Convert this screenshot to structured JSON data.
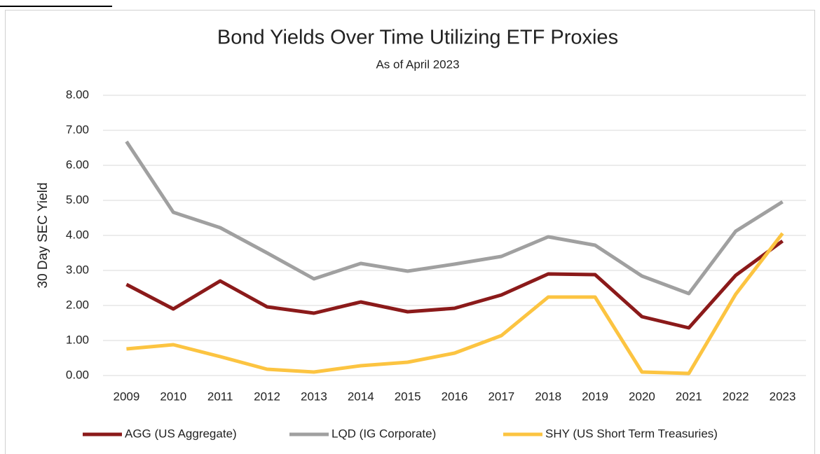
{
  "chart_data": {
    "type": "line",
    "title": "Bond Yields Over Time Utilizing ETF Proxies",
    "subtitle": "As of April 2023",
    "y_label": "30 Day SEC Yield",
    "categories": [
      "2009",
      "2010",
      "2011",
      "2012",
      "2013",
      "2014",
      "2015",
      "2016",
      "2017",
      "2018",
      "2019",
      "2020",
      "2021",
      "2022",
      "2023"
    ],
    "series": [
      {
        "name": "AGG (US Aggregate)",
        "color": "#8b1a1a",
        "values": [
          2.6,
          1.9,
          2.7,
          1.96,
          1.78,
          2.1,
          1.82,
          1.92,
          2.3,
          2.9,
          2.88,
          1.68,
          1.36,
          2.86,
          3.84
        ]
      },
      {
        "name": "LQD (IG Corporate)",
        "color": "#a0a0a0",
        "values": [
          6.68,
          4.66,
          4.22,
          3.5,
          2.76,
          3.2,
          2.98,
          3.18,
          3.4,
          3.96,
          3.72,
          2.84,
          2.34,
          4.12,
          4.96
        ]
      },
      {
        "name": "SHY (US Short Term Treasuries)",
        "color": "#fcc441",
        "values": [
          0.76,
          0.88,
          0.54,
          0.18,
          0.1,
          0.28,
          0.38,
          0.64,
          1.14,
          2.24,
          2.24,
          0.1,
          0.06,
          2.32,
          4.06
        ]
      }
    ],
    "ylim": [
      0,
      8
    ],
    "yticks": [
      {
        "value": 0,
        "label": "0.00"
      },
      {
        "value": 1,
        "label": "1.00"
      },
      {
        "value": 2,
        "label": "2.00"
      },
      {
        "value": 3,
        "label": "3.00"
      },
      {
        "value": 4,
        "label": "4.00"
      },
      {
        "value": 5,
        "label": "5.00"
      },
      {
        "value": 6,
        "label": "6.00"
      },
      {
        "value": 7,
        "label": "7.00"
      },
      {
        "value": 8,
        "label": "8.00"
      }
    ],
    "grid": true,
    "legend": "bottom"
  }
}
